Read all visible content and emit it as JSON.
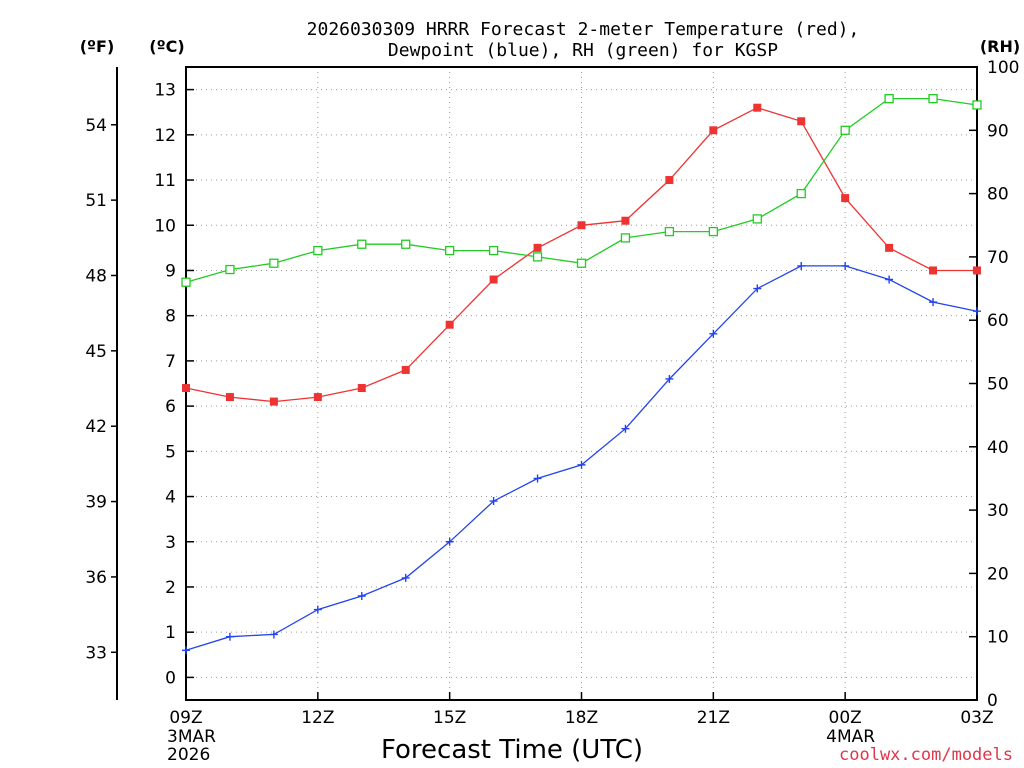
{
  "chart_data": {
    "type": "line",
    "title_line1": "2026030309 HRRR Forecast 2-meter Temperature (red),",
    "title_line2": "Dewpoint (blue), RH (green) for KGSP",
    "xlabel": "Forecast Time (UTC)",
    "credit": "coolwx.com/models",
    "left_axis_f": {
      "unit": "(ºF)",
      "ticks": [
        "33",
        "36",
        "39",
        "42",
        "45",
        "48",
        "51",
        "54"
      ],
      "tick_values": [
        33,
        36,
        39,
        42,
        45,
        48,
        51,
        54
      ]
    },
    "left_axis_c": {
      "unit": "(ºC)",
      "ylim": [
        -0.5,
        13.5
      ],
      "ticks": [
        "0",
        "1",
        "2",
        "3",
        "4",
        "5",
        "6",
        "7",
        "8",
        "9",
        "10",
        "11",
        "12",
        "13"
      ],
      "tick_values": [
        0,
        1,
        2,
        3,
        4,
        5,
        6,
        7,
        8,
        9,
        10,
        11,
        12,
        13
      ]
    },
    "right_axis_rh": {
      "unit": "(RH)",
      "ylim": [
        0,
        100
      ],
      "ticks": [
        "0",
        "10",
        "20",
        "30",
        "40",
        "50",
        "60",
        "70",
        "80",
        "90",
        "100"
      ],
      "tick_values": [
        0,
        10,
        20,
        30,
        40,
        50,
        60,
        70,
        80,
        90,
        100
      ]
    },
    "x_hours": [
      0,
      1,
      2,
      3,
      4,
      5,
      6,
      7,
      8,
      9,
      10,
      11,
      12,
      13,
      14,
      15,
      16,
      17,
      18
    ],
    "xlim": [
      0,
      18
    ],
    "x_ticks": [
      {
        "hour": 0,
        "label": "09Z",
        "date1": "3MAR",
        "date2": "2026"
      },
      {
        "hour": 3,
        "label": "12Z",
        "date1": "",
        "date2": ""
      },
      {
        "hour": 6,
        "label": "15Z",
        "date1": "",
        "date2": ""
      },
      {
        "hour": 9,
        "label": "18Z",
        "date1": "",
        "date2": ""
      },
      {
        "hour": 12,
        "label": "21Z",
        "date1": "",
        "date2": ""
      },
      {
        "hour": 15,
        "label": "00Z",
        "date1": "4MAR",
        "date2": ""
      },
      {
        "hour": 18,
        "label": "03Z",
        "date1": "",
        "date2": ""
      }
    ],
    "series": [
      {
        "name": "Temperature",
        "color": "#ee3333",
        "axis": "C",
        "marker": "filled-square",
        "values": [
          6.4,
          6.2,
          6.1,
          6.2,
          6.4,
          6.8,
          7.8,
          8.8,
          9.5,
          10.0,
          10.1,
          11.0,
          12.1,
          12.6,
          12.3,
          10.6,
          9.5,
          9.0,
          9.0
        ]
      },
      {
        "name": "Dewpoint",
        "color": "#2244ee",
        "axis": "C",
        "marker": "plus",
        "values": [
          0.6,
          0.9,
          0.95,
          1.5,
          1.8,
          2.2,
          3.0,
          3.9,
          4.4,
          4.7,
          5.5,
          6.6,
          7.6,
          8.6,
          9.1,
          9.1,
          8.8,
          8.3,
          8.1
        ]
      },
      {
        "name": "RH",
        "color": "#22cc22",
        "axis": "RH",
        "marker": "open-square",
        "values": [
          66,
          68,
          69,
          71,
          72,
          72,
          71,
          71,
          70,
          69,
          73,
          74,
          74,
          76,
          80,
          90,
          95,
          95,
          94
        ]
      }
    ]
  }
}
